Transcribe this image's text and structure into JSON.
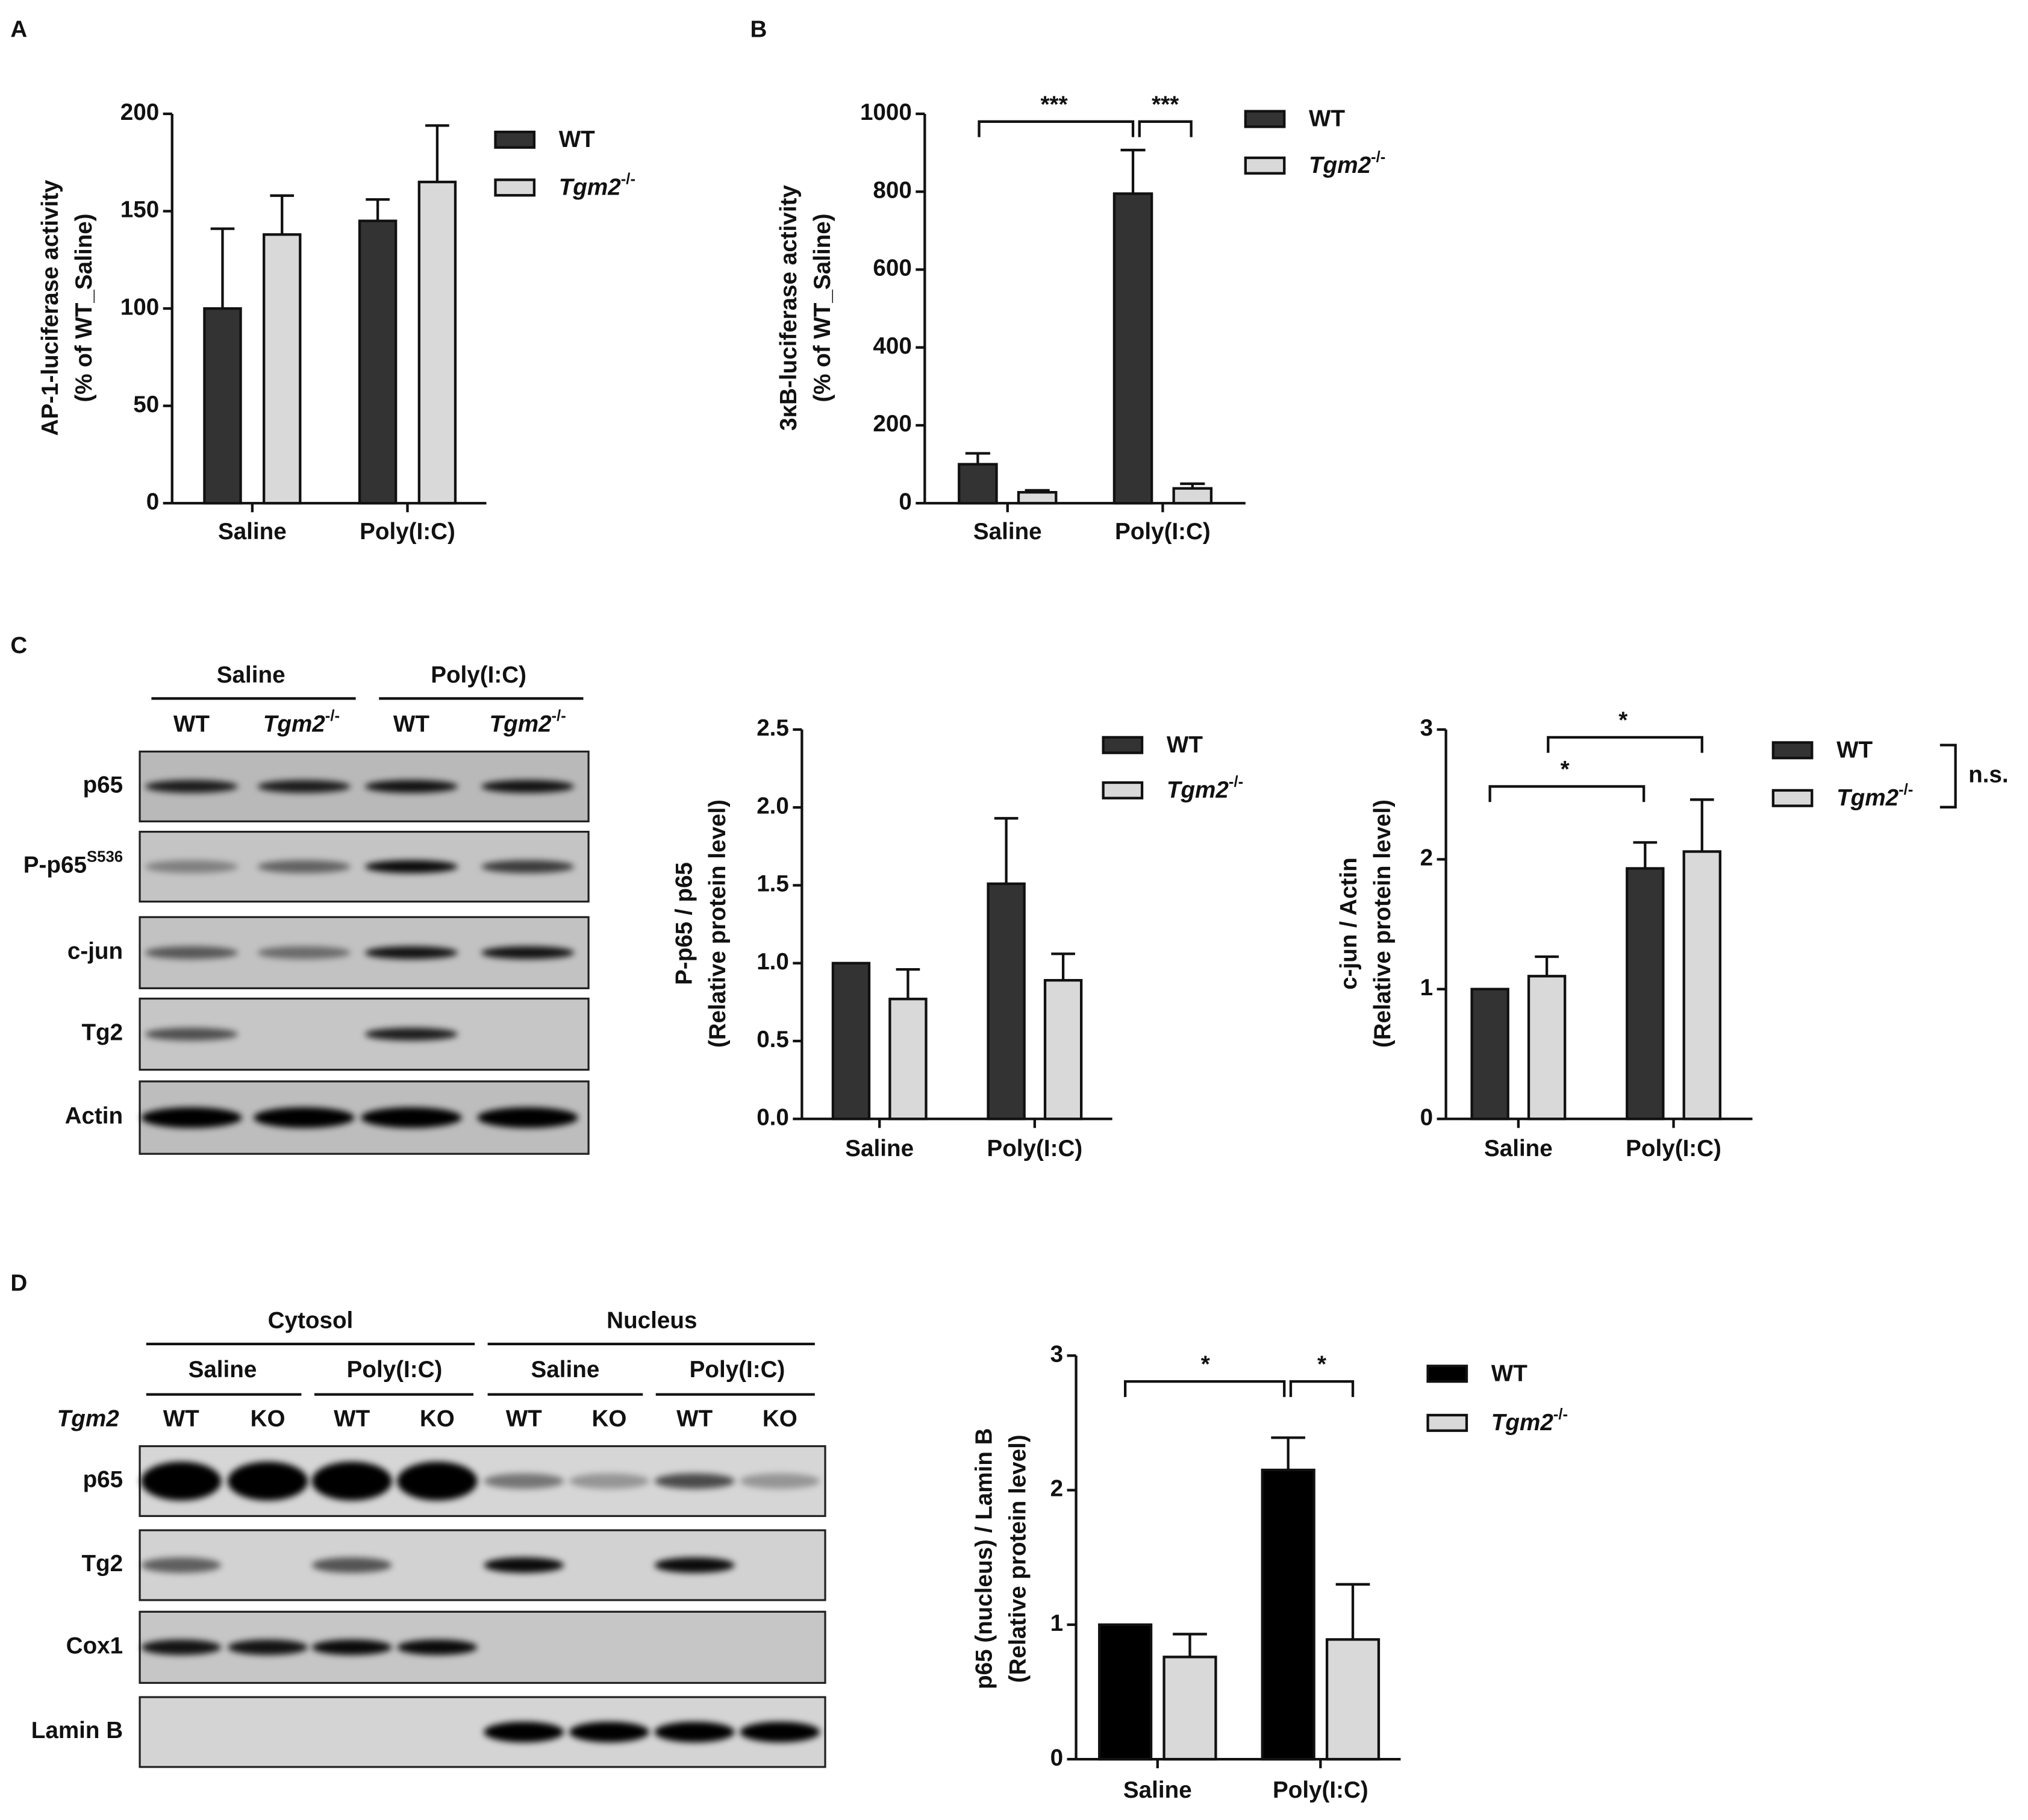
{
  "panel_labels": [
    "A",
    "B",
    "C",
    "D"
  ],
  "chart_data": [
    {
      "type": "bar",
      "ylabel": [
        "AP-1-luciferase activity",
        "(% of WT_Saline)"
      ],
      "categories": [
        "Saline",
        "Poly(I:C)"
      ],
      "series": [
        {
          "name": "WT",
          "color": "#333333",
          "values": [
            100,
            145
          ],
          "errors": [
            41,
            11
          ]
        },
        {
          "name": "Tgm2",
          "superscript": "-/-",
          "color": "#d9d9d9",
          "values": [
            138,
            165
          ],
          "errors": [
            20,
            29
          ]
        }
      ],
      "ylim": [
        0,
        200
      ],
      "yticks": [
        0,
        50,
        100,
        150,
        200
      ]
    },
    {
      "type": "bar",
      "ylabel": [
        "3κB-luciferase activity",
        "(% of WT_Saline)"
      ],
      "categories": [
        "Saline",
        "Poly(I:C)"
      ],
      "series": [
        {
          "name": "WT",
          "color": "#333333",
          "values": [
            100,
            795
          ],
          "errors": [
            28,
            112
          ]
        },
        {
          "name": "Tgm2",
          "superscript": "-/-",
          "color": "#d9d9d9",
          "values": [
            28,
            38
          ],
          "errors": [
            5,
            12
          ]
        }
      ],
      "ylim": [
        0,
        1000
      ],
      "yticks": [
        0,
        200,
        400,
        600,
        800,
        1000
      ],
      "annotations": [
        "***",
        "***"
      ]
    },
    {
      "type": "bar",
      "ylabel": [
        "P-p65 / p65",
        "(Relative protein level)"
      ],
      "categories": [
        "Saline",
        "Poly(I:C)"
      ],
      "series": [
        {
          "name": "WT",
          "color": "#333333",
          "values": [
            1.0,
            1.51
          ],
          "errors": [
            null,
            0.42
          ]
        },
        {
          "name": "Tgm2",
          "superscript": "-/-",
          "color": "#d9d9d9",
          "values": [
            0.77,
            0.89
          ],
          "errors": [
            0.19,
            0.17
          ]
        }
      ],
      "ylim": [
        0,
        2.5
      ],
      "yticks": [
        {
          "value": 0,
          "label": "0.0"
        },
        0.5,
        {
          "value": 1,
          "label": "1.0"
        },
        1.5,
        {
          "value": 2,
          "label": "2.0"
        },
        2.5
      ]
    },
    {
      "type": "bar",
      "ylabel": [
        "c-jun / Actin",
        "(Relative protein level)"
      ],
      "categories": [
        "Saline",
        "Poly(I:C)"
      ],
      "series": [
        {
          "name": "WT",
          "color": "#333333",
          "values": [
            1.0,
            1.93
          ],
          "errors": [
            null,
            0.2
          ]
        },
        {
          "name": "Tgm2",
          "superscript": "-/-",
          "color": "#d9d9d9",
          "values": [
            1.1,
            2.06
          ],
          "errors": [
            0.15,
            0.4
          ]
        }
      ],
      "ylim": [
        0,
        3
      ],
      "yticks": [
        0,
        1,
        2,
        3
      ],
      "annotations": [
        "*",
        "*",
        "n.s."
      ]
    },
    {
      "type": "bar",
      "ylabel": [
        "p65 (nucleus) / Lamin B",
        "(Relative protein level)"
      ],
      "categories": [
        "Saline",
        "Poly(I:C)"
      ],
      "series": [
        {
          "name": "WT",
          "color": "#000000",
          "values": [
            1.0,
            2.15
          ],
          "errors": [
            null,
            0.24
          ]
        },
        {
          "name": "Tgm2",
          "superscript": "-/-",
          "color": "#d9d9d9",
          "values": [
            0.76,
            0.89
          ],
          "errors": [
            0.17,
            0.41
          ]
        }
      ],
      "ylim": [
        0,
        3
      ],
      "yticks": [
        0,
        1,
        2,
        3
      ],
      "annotations": [
        "*",
        "*"
      ]
    }
  ],
  "blots": [
    {
      "groups": [
        "Saline",
        "Poly(I:C)"
      ],
      "lanes": [
        {
          "text": "WT"
        },
        {
          "text": "Tgm2",
          "sup": "-/-"
        },
        {
          "text": "WT"
        },
        {
          "text": "Tgm2",
          "sup": "-/-"
        }
      ],
      "rows": [
        {
          "text": "p65"
        },
        {
          "text": "P-p65",
          "sup": "S536"
        },
        {
          "text": "c-jun"
        },
        {
          "text": "Tg2"
        },
        {
          "text": "Actin"
        }
      ]
    },
    {
      "compartments": [
        "Cytosol",
        "Nucleus"
      ],
      "groups": [
        "Saline",
        "Poly(I:C)",
        "Saline",
        "Poly(I:C)"
      ],
      "genotype_label": "Tgm2",
      "lanes": [
        "WT",
        "KO",
        "WT",
        "KO",
        "WT",
        "KO",
        "WT",
        "KO"
      ],
      "rows": [
        "p65",
        "Tg2",
        "Cox1",
        "Lamin B"
      ]
    }
  ]
}
